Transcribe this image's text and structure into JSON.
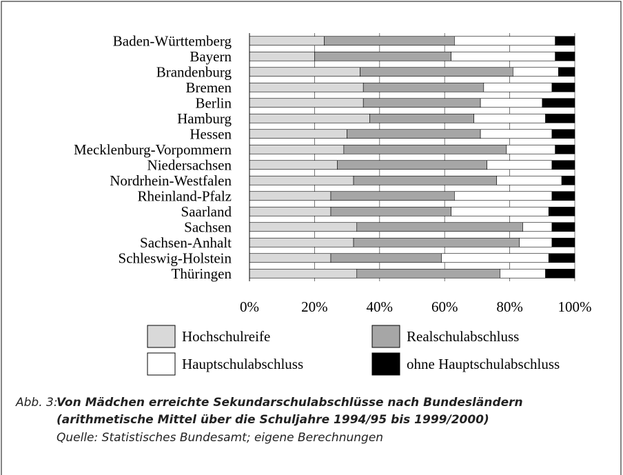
{
  "chart_data": {
    "type": "stacked_bar_horizontal",
    "categories": [
      "Baden-Württemberg",
      "Bayern",
      "Brandenburg",
      "Bremen",
      "Berlin",
      "Hamburg",
      "Hessen",
      "Mecklenburg-Vorpommern",
      "Niedersachsen",
      "Nordrhein-Westfalen",
      "Rheinland-Pfalz",
      "Saarland",
      "Sachsen",
      "Sachsen-Anhalt",
      "Schleswig-Holstein",
      "Thüringen"
    ],
    "series": [
      {
        "name": "Hochschulreife",
        "color": "#d9d9d9",
        "values": [
          23,
          20,
          34,
          35,
          35,
          37,
          30,
          29,
          27,
          32,
          25,
          25,
          33,
          32,
          25,
          33
        ]
      },
      {
        "name": "Realschulabschluss",
        "color": "#a6a6a6",
        "values": [
          40,
          42,
          47,
          37,
          36,
          32,
          41,
          50,
          46,
          44,
          38,
          37,
          51,
          51,
          34,
          44
        ]
      },
      {
        "name": "Hauptschulabschluss",
        "color": "#ffffff",
        "values": [
          31,
          32,
          14,
          21,
          19,
          22,
          22,
          15,
          20,
          20,
          30,
          30,
          9,
          10,
          33,
          14
        ]
      },
      {
        "name": "ohne Hauptschulabschluss",
        "color": "#000000",
        "values": [
          6,
          6,
          5,
          7,
          10,
          9,
          7,
          6,
          7,
          4,
          7,
          8,
          7,
          7,
          8,
          9
        ]
      }
    ],
    "xlim": [
      0,
      100
    ],
    "xticks": [
      {
        "value": 0,
        "label": "0%"
      },
      {
        "value": 20,
        "label": "20%"
      },
      {
        "value": 40,
        "label": "40%"
      },
      {
        "value": 60,
        "label": "60%"
      },
      {
        "value": 80,
        "label": "80%"
      },
      {
        "value": 100,
        "label": "100%"
      }
    ],
    "grid": true,
    "caption_label": "Abb. 3:",
    "title": [
      "Von Mädchen erreichte Sekundarschulabschlüsse nach Bundesländern",
      "(arithmetische Mittel über die Schuljahre 1994/95 bis 1999/2000)"
    ],
    "source": "Quelle: Statistisches Bundesamt; eigene Berechnungen"
  }
}
